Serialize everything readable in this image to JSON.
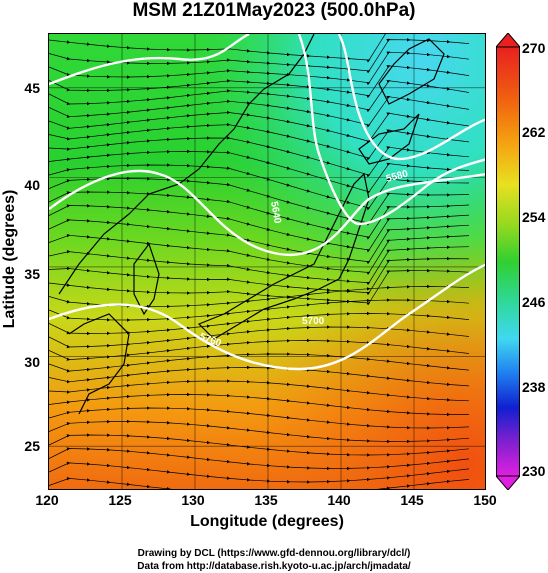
{
  "title": "MSM 21Z01May2023 (500.0hPa)",
  "map": {
    "xlabel": "Longitude (degrees)",
    "ylabel": "Latitude  (degrees)",
    "xlim": [
      120,
      150
    ],
    "ylim": [
      22.5,
      48
    ],
    "xticks": [
      "120",
      "125",
      "130",
      "135",
      "140",
      "145",
      "150"
    ],
    "yticks": [
      "45",
      "40",
      "35",
      "30",
      "25"
    ],
    "contour_labels": [
      "5580",
      "5640",
      "5700",
      "5820",
      "5760"
    ],
    "variable_shading": "temperature (K)"
  },
  "colorbar": {
    "ticks": [
      "270",
      "262",
      "254",
      "246",
      "238",
      "230"
    ],
    "range": [
      230,
      270
    ]
  },
  "credits": {
    "line1": "Drawing by DCL (https://www.gfd-dennou.org/library/dcl/)",
    "line2": "Data from http://database.rish.kyoto-u.ac.jp/arch/jmadata/"
  },
  "colors": {
    "warm": "#f07a10",
    "mid": "#24d020",
    "cool": "#28d8e8",
    "contour": "#ffffff",
    "streamline": "#000000"
  }
}
